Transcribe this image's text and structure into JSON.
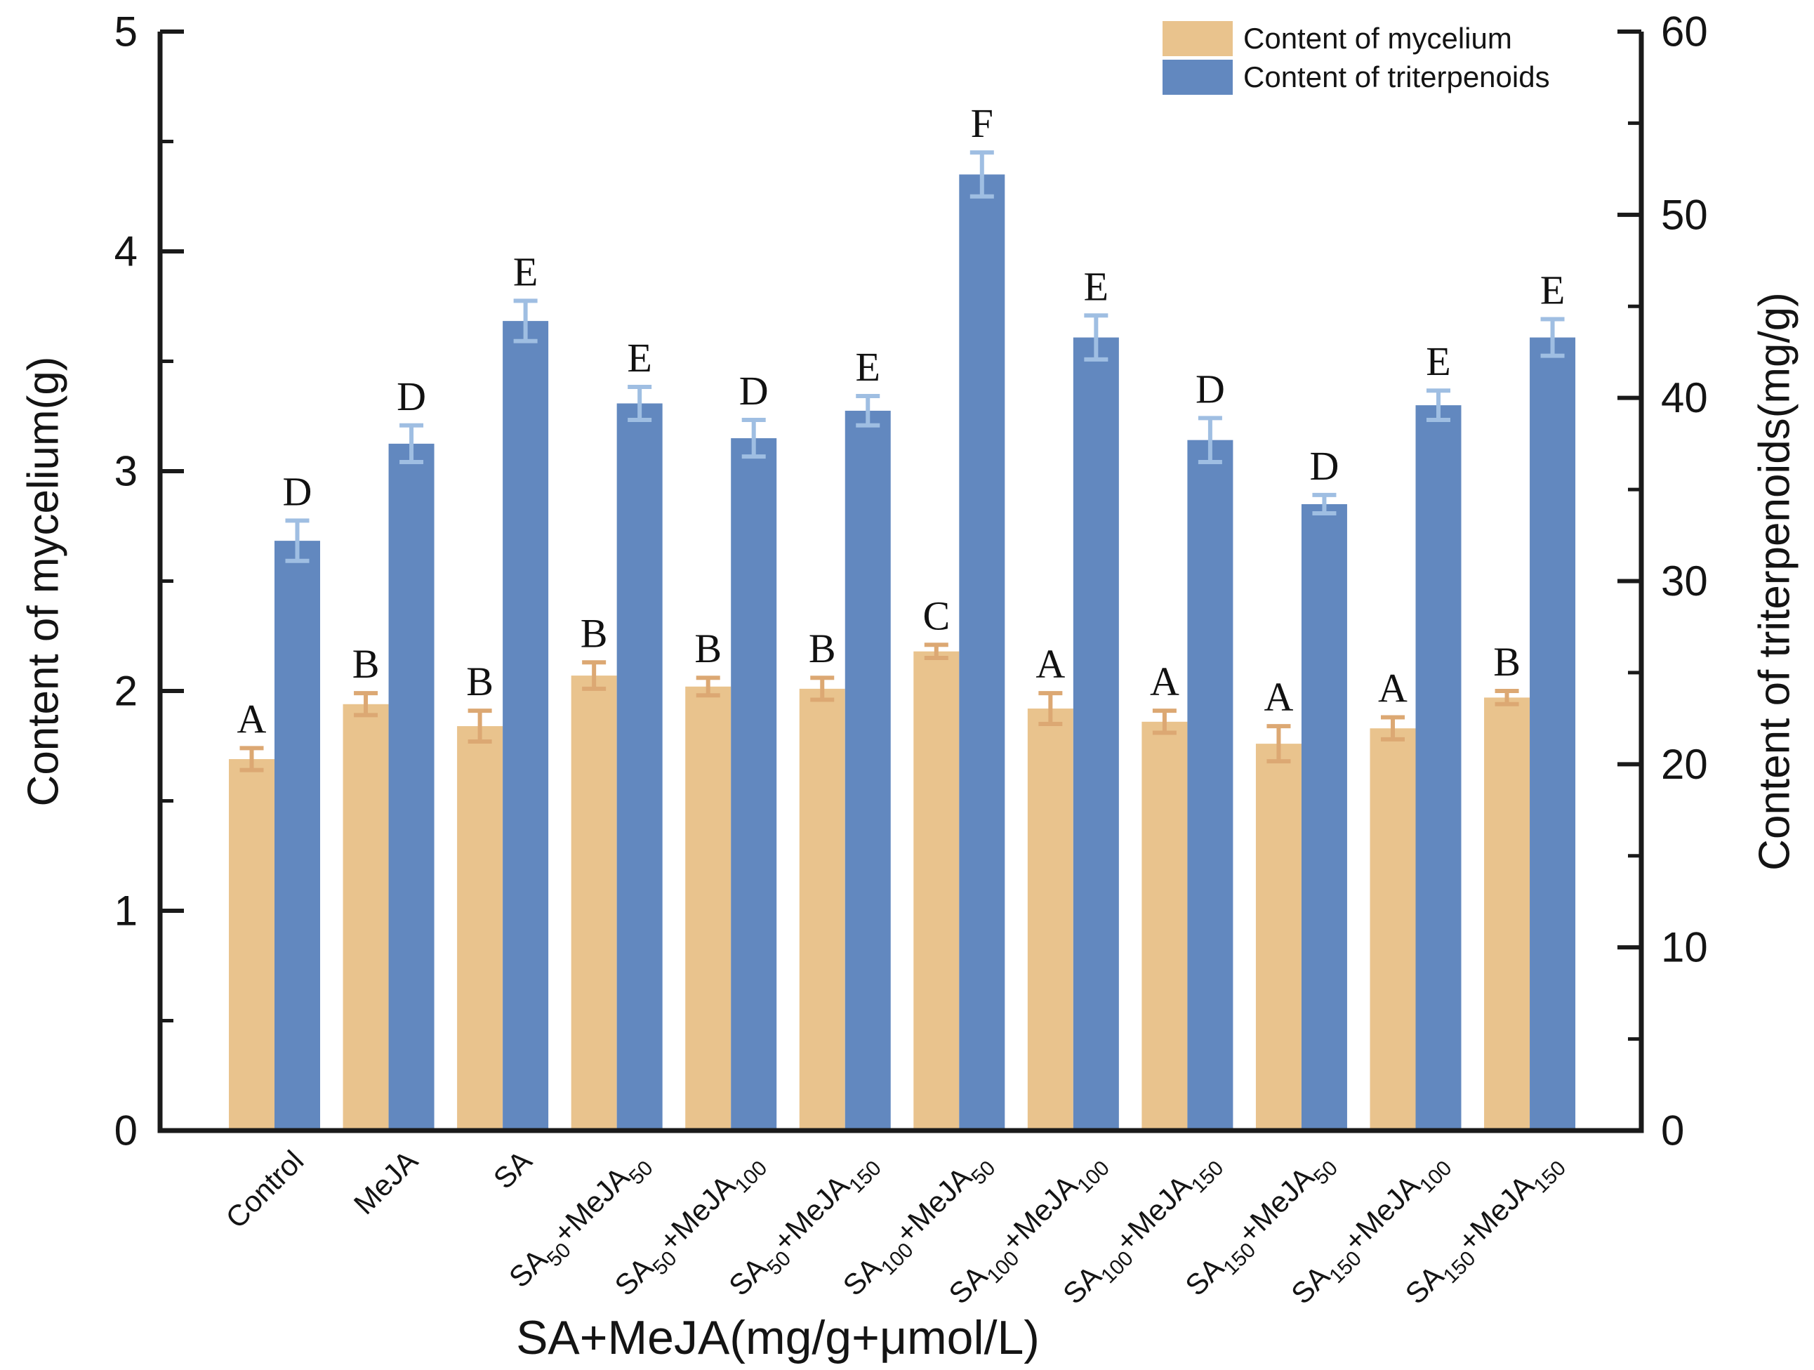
{
  "figure": {
    "background": "#ffffff"
  },
  "chart_data": {
    "type": "bar",
    "title": "",
    "xlabel": "SA+MeJA(mg/g+μmol/L)",
    "ylabel_left": "Content of mycelium(g)",
    "ylabel_right": "Content of triterpenoids(mg/g)",
    "grid": false,
    "legend_position": "top-right",
    "categories": [
      "Control",
      "MeJA",
      "SA",
      "SA{50}+MeJA{50}",
      "SA{50}+MeJA{100}",
      "SA{50}+MeJA{150}",
      "SA{100}+MeJA{50}",
      "SA{100}+MeJA{100}",
      "SA{100}+MeJA{150}",
      "SA{150}+MeJA{50}",
      "SA{150}+MeJA{100}",
      "SA{150}+MeJA{150}"
    ],
    "axes": {
      "left": {
        "min": 0,
        "max": 5,
        "major_ticks": [
          0,
          1,
          2,
          3,
          4,
          5
        ],
        "minor_step": 0.5
      },
      "right": {
        "min": 0,
        "max": 60,
        "major_ticks": [
          0,
          10,
          20,
          30,
          40,
          50,
          60
        ],
        "minor_step": 5
      }
    },
    "series": [
      {
        "name": "Content of mycelium",
        "axis": "left",
        "unit": "g",
        "color": "#E9C38D",
        "error_color": "#DCA873",
        "values": [
          1.69,
          1.94,
          1.84,
          2.07,
          2.02,
          2.01,
          2.18,
          1.92,
          1.86,
          1.76,
          1.83,
          1.97
        ],
        "errors": [
          0.05,
          0.05,
          0.07,
          0.06,
          0.04,
          0.05,
          0.03,
          0.07,
          0.05,
          0.08,
          0.05,
          0.03
        ],
        "letters": [
          "A",
          "B",
          "B",
          "B",
          "B",
          "B",
          "C",
          "A",
          "A",
          "A",
          "A",
          "B"
        ]
      },
      {
        "name": "Content of triterpenoids",
        "axis": "right",
        "unit": "mg/g",
        "color": "#6288BF",
        "error_color": "#9FBEE2",
        "values": [
          32.2,
          37.5,
          44.2,
          39.7,
          37.8,
          39.3,
          52.2,
          43.3,
          37.7,
          34.2,
          39.6,
          43.3
        ],
        "errors": [
          1.1,
          1.0,
          1.1,
          0.9,
          1.0,
          0.8,
          1.2,
          1.2,
          1.2,
          0.5,
          0.8,
          1.0
        ],
        "letters": [
          "D",
          "D",
          "E",
          "E",
          "D",
          "E",
          "F",
          "E",
          "D",
          "D",
          "E",
          "E"
        ]
      }
    ]
  }
}
